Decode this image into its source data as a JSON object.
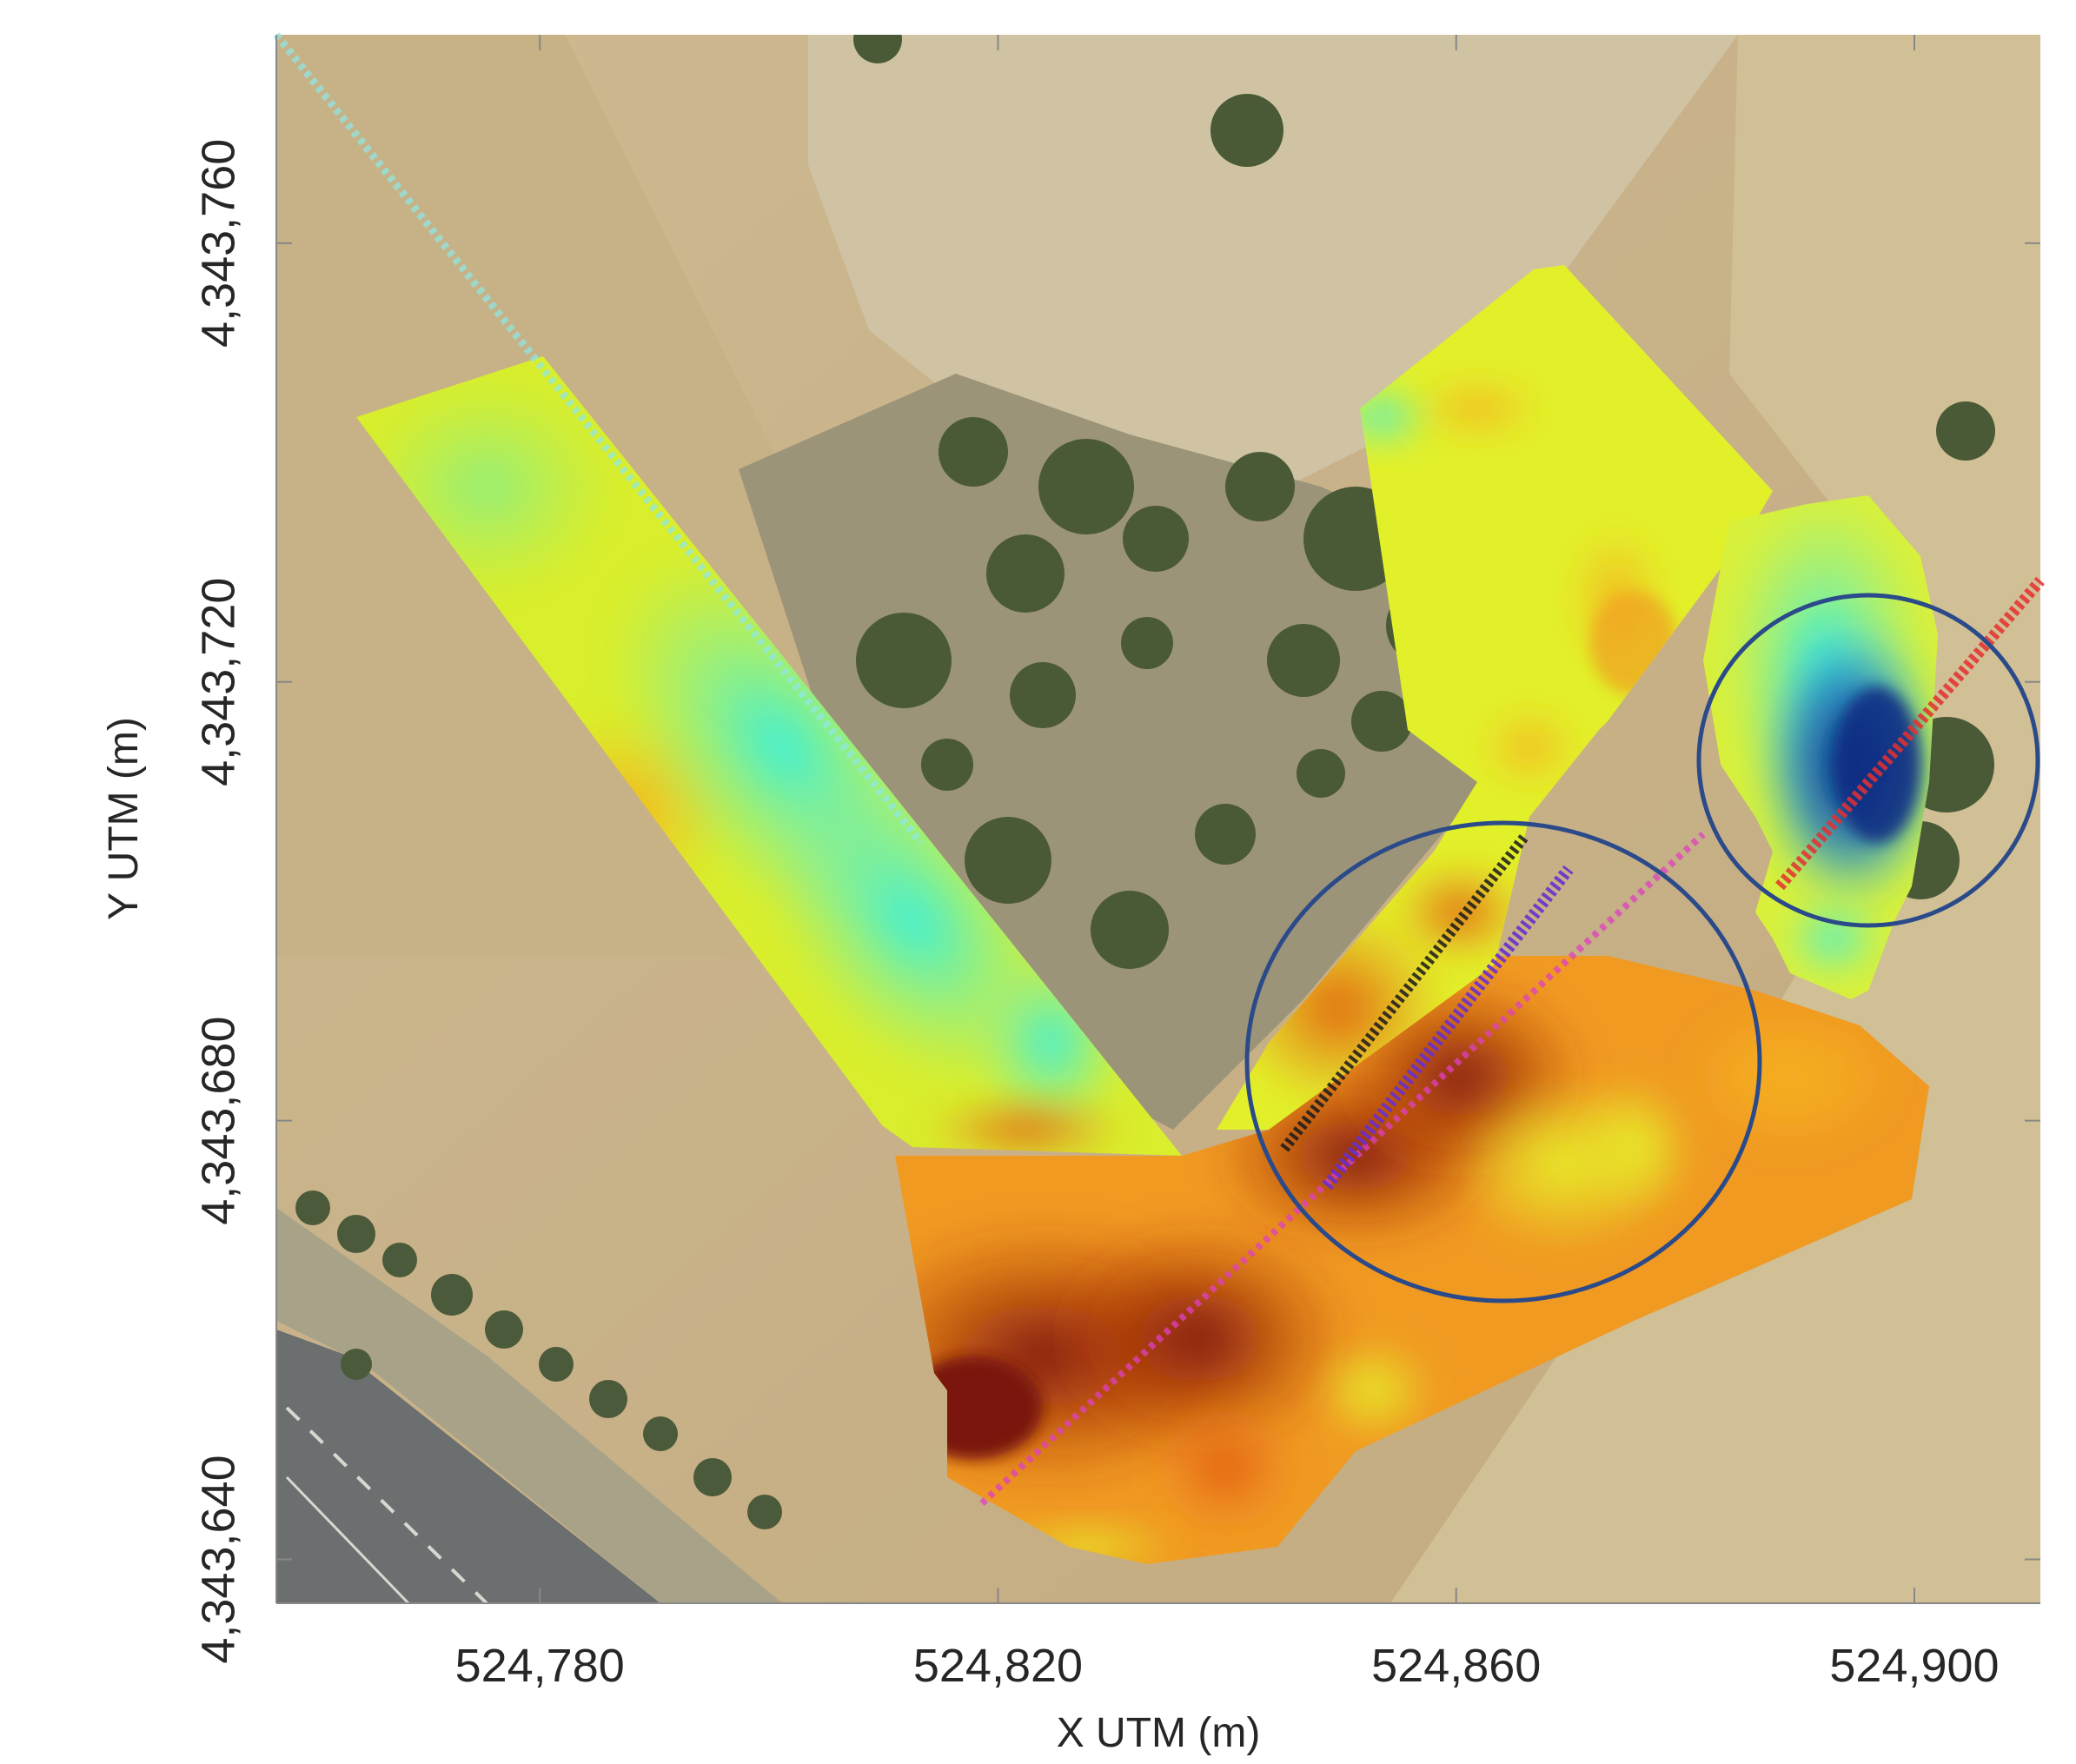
{
  "map": {
    "xlabel": "X UTM (m)",
    "ylabel": "Y UTM (m)",
    "x_ticks": [
      {
        "value": 524780,
        "label": "524,780"
      },
      {
        "value": 524820,
        "label": "524,820"
      },
      {
        "value": 524860,
        "label": "524,860"
      },
      {
        "value": 524900,
        "label": "524,900"
      }
    ],
    "y_ticks": [
      {
        "value": 4343760,
        "label": "4,343,760"
      },
      {
        "value": 4343720,
        "label": "4,343,720"
      },
      {
        "value": 4343680,
        "label": "4,343,680"
      },
      {
        "value": 4343640,
        "label": "4,343,640"
      }
    ],
    "x_range": [
      524757,
      524911
    ],
    "y_range": [
      4343636,
      4343779
    ],
    "basemap": "aerial-imagery",
    "overlay": "geophysical-survey-color-grid",
    "colors": {
      "low": "#0b2f8f",
      "mid_low": "#3ff0e0",
      "mid": "#e8f020",
      "mid_high": "#f5a020",
      "high": "#7a1208",
      "highlight_circle": "#2b4a8a"
    }
  }
}
